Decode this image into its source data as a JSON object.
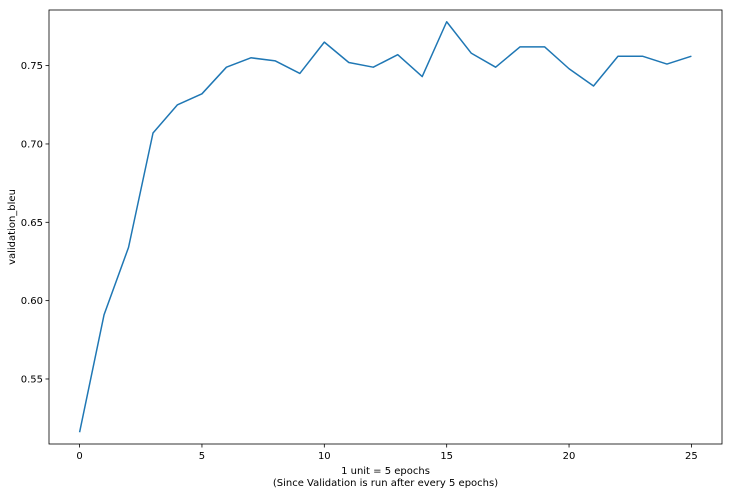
{
  "chart_data": {
    "type": "line",
    "title": "",
    "xlabel_lines": [
      "1 unit = 5 epochs",
      "(Since Validation is run after every 5 epochs)"
    ],
    "ylabel": "validation_bleu",
    "xlim": [
      -1.25,
      26.25
    ],
    "ylim": [
      0.5085,
      0.7855
    ],
    "xticks": [
      0,
      5,
      10,
      15,
      20,
      25
    ],
    "yticks": [
      0.55,
      0.6,
      0.65,
      0.7,
      0.75
    ],
    "xtick_labels": [
      "0",
      "5",
      "10",
      "15",
      "20",
      "25"
    ],
    "ytick_labels": [
      "0.55",
      "0.60",
      "0.65",
      "0.70",
      "0.75"
    ],
    "grid": false,
    "legend": "none",
    "series": [
      {
        "color": "#1f77b4",
        "x": [
          0,
          1,
          2,
          3,
          4,
          5,
          6,
          7,
          8,
          9,
          10,
          11,
          12,
          13,
          14,
          15,
          16,
          17,
          18,
          19,
          20,
          21,
          22,
          23,
          24,
          25
        ],
        "y": [
          0.516,
          0.591,
          0.634,
          0.707,
          0.725,
          0.732,
          0.749,
          0.755,
          0.753,
          0.745,
          0.765,
          0.752,
          0.749,
          0.757,
          0.743,
          0.778,
          0.758,
          0.749,
          0.762,
          0.762,
          0.748,
          0.737,
          0.756,
          0.756,
          0.751,
          0.756
        ]
      }
    ]
  }
}
